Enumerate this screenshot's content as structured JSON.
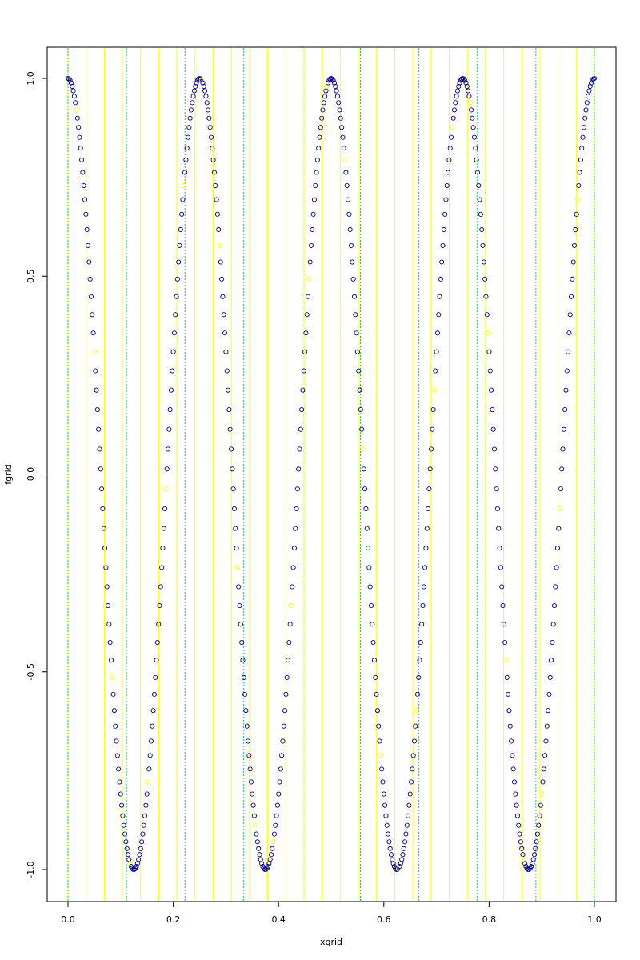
{
  "chart_data": {
    "type": "scatter",
    "title": "",
    "xlabel": "xgrid",
    "ylabel": "fgrid",
    "xlim": [
      0,
      1
    ],
    "ylim": [
      -1,
      1
    ],
    "xticks": [
      0.0,
      0.2,
      0.4,
      0.6,
      0.8,
      1.0
    ],
    "xtick_labels": [
      "0.0",
      "0.2",
      "0.4",
      "0.6",
      "0.8",
      "1.0"
    ],
    "yticks": [
      -1.0,
      -0.5,
      0.0,
      0.5,
      1.0
    ],
    "ytick_labels": [
      "-1.0",
      "-0.5",
      "0.0",
      "0.5",
      "1.0"
    ],
    "function": "cos(8*pi*x)",
    "n_points": 501,
    "point_color": "#00008b",
    "highlight_color": "#ffff00",
    "highlight_every": 17,
    "vertical_lines": {
      "yellow": {
        "color": "#ffff00",
        "style": "solid",
        "x": [
          0.0,
          0.0345,
          0.069,
          0.1034,
          0.1379,
          0.1724,
          0.2069,
          0.2414,
          0.2759,
          0.3103,
          0.3448,
          0.3793,
          0.4138,
          0.4483,
          0.4828,
          0.5172,
          0.5517,
          0.5862,
          0.6207,
          0.6552,
          0.6897,
          0.7241,
          0.7586,
          0.7931,
          0.8276,
          0.8621,
          0.8966,
          0.931,
          0.9655,
          1.0
        ]
      },
      "green": {
        "color": "#20c060",
        "style": "dotted",
        "x": [
          0.0,
          0.1111,
          0.2222,
          0.3333,
          0.4444,
          0.5556,
          0.6667,
          0.7778,
          0.8889,
          1.0
        ]
      }
    }
  }
}
